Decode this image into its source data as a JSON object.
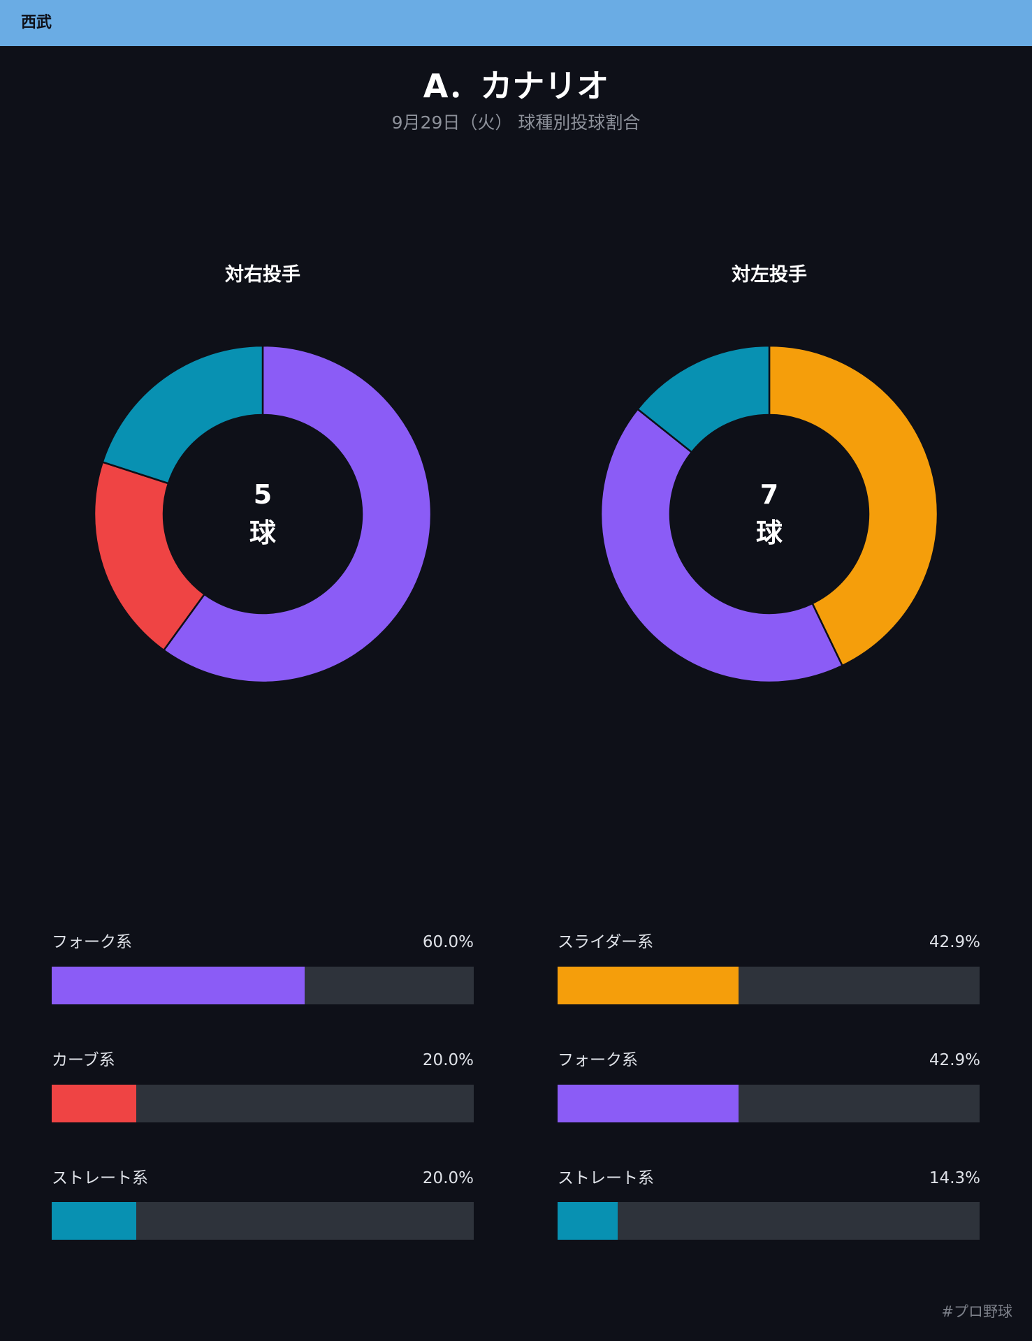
{
  "header": {
    "team": "西武",
    "bar_color": "#6aace4"
  },
  "title": "A．カナリオ",
  "subtitle": "9月29日（火） 球種別投球割合",
  "chart_data": [
    {
      "type": "pie",
      "title": "対右投手",
      "center_count": "5",
      "center_unit": "球",
      "slices": [
        {
          "label": "フォーク系",
          "value": 60.0,
          "value_label": "60.0%",
          "color": "#8b5cf6"
        },
        {
          "label": "カーブ系",
          "value": 20.0,
          "value_label": "20.0%",
          "color": "#ef4444"
        },
        {
          "label": "ストレート系",
          "value": 20.0,
          "value_label": "20.0%",
          "color": "#0891b2"
        }
      ]
    },
    {
      "type": "pie",
      "title": "対左投手",
      "center_count": "7",
      "center_unit": "球",
      "slices": [
        {
          "label": "スライダー系",
          "value": 42.9,
          "value_label": "42.9%",
          "color": "#f59e0b"
        },
        {
          "label": "フォーク系",
          "value": 42.9,
          "value_label": "42.9%",
          "color": "#8b5cf6"
        },
        {
          "label": "ストレート系",
          "value": 14.3,
          "value_label": "14.3%",
          "color": "#0891b2"
        }
      ]
    }
  ],
  "footer": {
    "hashtag": "#プロ野球"
  }
}
